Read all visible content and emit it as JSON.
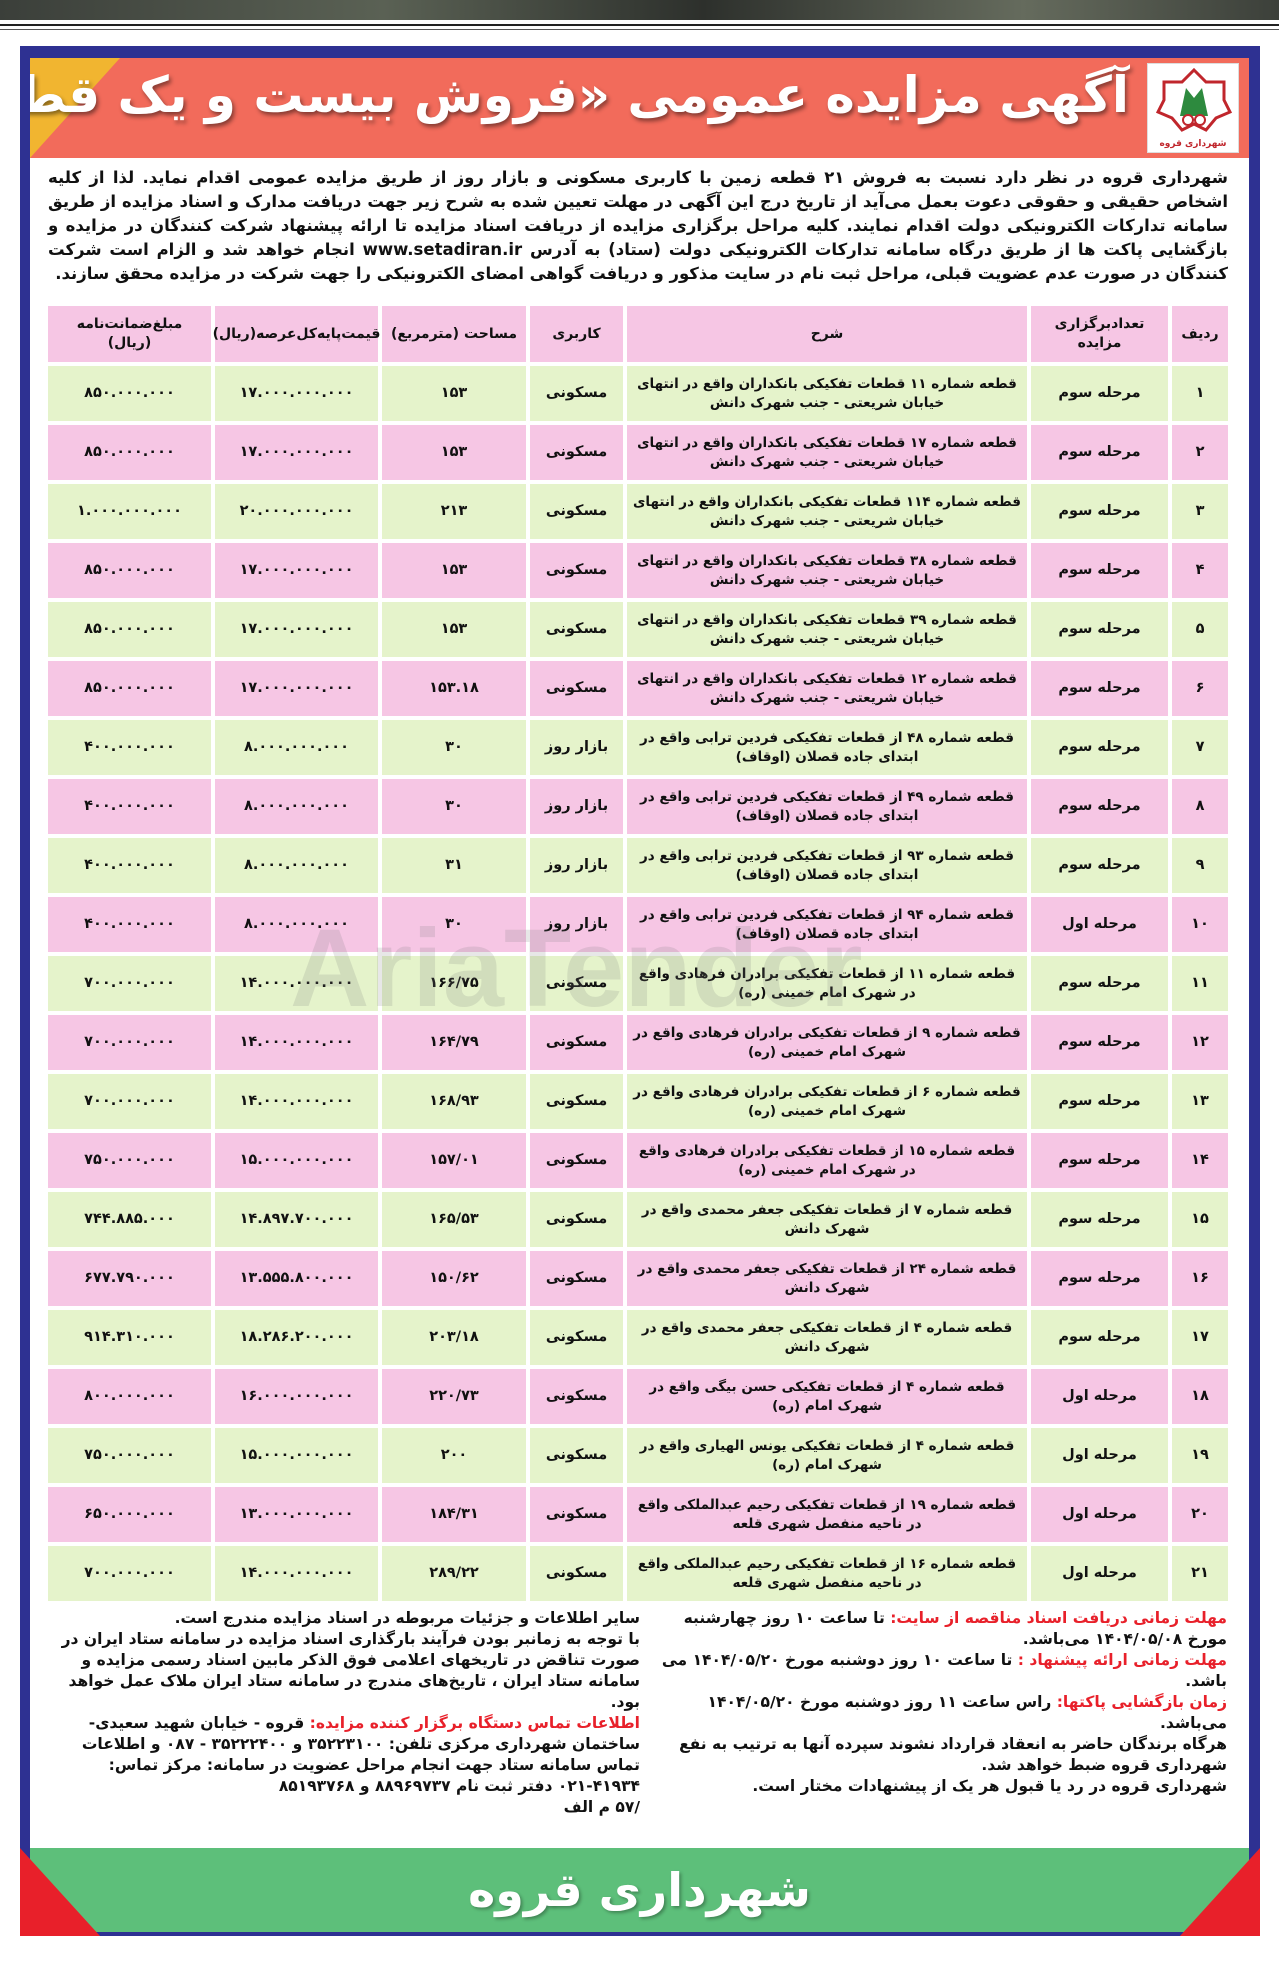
{
  "colors": {
    "frame": "#2e3192",
    "header": "#f26b5b",
    "accent_yellow": "#f1b530",
    "row_green": "#e5f3cb",
    "row_pink": "#f6c6e4",
    "highlight_red": "#e8202a",
    "footer_green": "#5dbf7a"
  },
  "header": {
    "title": "آگهی مزایده عمومی «فروش بیست و یک قطعه زمین»",
    "logo_text": "شهرداری قروه"
  },
  "intro": "شهرداری قروه در نظر دارد نسبت به فروش ۲۱ قطعه زمین با کاربری مسکونی و بازار روز از طریق مزایده عمومی اقدام نماید. لذا از کلیه اشخاص حقیقی و حقوقی دعوت بعمل می‌آید از تاریخ درج این آگهی در مهلت تعیین شده به شرح زیر جهت دریافت مدارک و اسناد مزایده از طریق سامانه تدارکات الکترونیکی دولت اقدام نمایند. کلیه مراحل برگزاری مزایده از دریافت اسناد مزایده تا ارائه پیشنهاد شرکت کنندگان در مزایده و بازگشایی پاکت ها از طریق درگاه سامانه تدارکات الکترونیکی دولت (ستاد) به آدرس www.setadiran.ir انجام خواهد شد و الزام است شرکت کنندگان در صورت عدم عضویت قبلی، مراحل ثبت نام در سایت مذکور و دریافت گواهی امضای الکترونیکی را جهت شرکت در مزایده محقق سازند.",
  "table": {
    "headers": [
      "ردیف",
      "تعدادبرگزاری مزایده",
      "شرح",
      "کاربری",
      "مساحت (مترمربع)",
      "قیمت‌پایه‌کل‌عرصه(ریال)",
      "مبلغ‌ضمانت‌نامه (ریال)"
    ],
    "rows": [
      [
        "۱",
        "مرحله سوم",
        "قطعه شماره ۱۱ قطعات تفکیکی بانکداران واقع در انتهای خیابان شریعتی - جنب شهرک دانش",
        "مسکونی",
        "۱۵۳",
        "۱۷.۰۰۰.۰۰۰.۰۰۰",
        "۸۵۰.۰۰۰.۰۰۰"
      ],
      [
        "۲",
        "مرحله سوم",
        "قطعه شماره ۱۷ قطعات تفکیکی بانکداران واقع در انتهای خیابان شریعتی - جنب شهرک دانش",
        "مسکونی",
        "۱۵۳",
        "۱۷.۰۰۰.۰۰۰.۰۰۰",
        "۸۵۰.۰۰۰.۰۰۰"
      ],
      [
        "۳",
        "مرحله سوم",
        "قطعه شماره ۱۱۴ قطعات تفکیکی بانکداران واقع در انتهای خیابان شریعتی - جنب شهرک دانش",
        "مسکونی",
        "۲۱۳",
        "۲۰.۰۰۰.۰۰۰.۰۰۰",
        "۱.۰۰۰.۰۰۰.۰۰۰"
      ],
      [
        "۴",
        "مرحله سوم",
        "قطعه شماره ۳۸ قطعات تفکیکی بانکداران واقع در انتهای خیابان شریعتی - جنب شهرک دانش",
        "مسکونی",
        "۱۵۳",
        "۱۷.۰۰۰.۰۰۰.۰۰۰",
        "۸۵۰.۰۰۰.۰۰۰"
      ],
      [
        "۵",
        "مرحله سوم",
        "قطعه شماره ۳۹ قطعات تفکیکی بانکداران واقع در انتهای خیابان شریعتی - جنب شهرک دانش",
        "مسکونی",
        "۱۵۳",
        "۱۷.۰۰۰.۰۰۰.۰۰۰",
        "۸۵۰.۰۰۰.۰۰۰"
      ],
      [
        "۶",
        "مرحله سوم",
        "قطعه شماره ۱۲ قطعات تفکیکی بانکداران واقع در انتهای خیابان شریعتی - جنب شهرک دانش",
        "مسکونی",
        "۱۵۳.۱۸",
        "۱۷.۰۰۰.۰۰۰.۰۰۰",
        "۸۵۰.۰۰۰.۰۰۰"
      ],
      [
        "۷",
        "مرحله سوم",
        "قطعه شماره ۴۸ از قطعات تفکیکی فردین ترابی واقع در ابتدای جاده قصلان (اوقاف)",
        "بازار روز",
        "۳۰",
        "۸.۰۰۰.۰۰۰.۰۰۰",
        "۴۰۰.۰۰۰.۰۰۰"
      ],
      [
        "۸",
        "مرحله سوم",
        "قطعه شماره ۴۹ از قطعات تفکیکی فردین ترابی واقع در ابتدای جاده قصلان (اوقاف)",
        "بازار روز",
        "۳۰",
        "۸.۰۰۰.۰۰۰.۰۰۰",
        "۴۰۰.۰۰۰.۰۰۰"
      ],
      [
        "۹",
        "مرحله سوم",
        "قطعه شماره ۹۳ از قطعات تفکیکی فردین ترابی واقع در ابتدای جاده قصلان (اوقاف)",
        "بازار روز",
        "۳۱",
        "۸.۰۰۰.۰۰۰.۰۰۰",
        "۴۰۰.۰۰۰.۰۰۰"
      ],
      [
        "۱۰",
        "مرحله اول",
        "قطعه شماره ۹۴ از قطعات تفکیکی فردین ترابی واقع در ابتدای جاده قصلان (اوقاف)",
        "بازار روز",
        "۳۰",
        "۸.۰۰۰.۰۰۰.۰۰۰",
        "۴۰۰.۰۰۰.۰۰۰"
      ],
      [
        "۱۱",
        "مرحله سوم",
        "قطعه شماره ۱۱ از قطعات تفکیکی برادران فرهادی واقع در شهرک امام خمینی (ره)",
        "مسکونی",
        "۱۶۶/۷۵",
        "۱۴.۰۰۰.۰۰۰.۰۰۰",
        "۷۰۰.۰۰۰.۰۰۰"
      ],
      [
        "۱۲",
        "مرحله سوم",
        "قطعه شماره ۹ از قطعات تفکیکی برادران فرهادی واقع در شهرک امام خمینی (ره)",
        "مسکونی",
        "۱۶۴/۷۹",
        "۱۴.۰۰۰.۰۰۰.۰۰۰",
        "۷۰۰.۰۰۰.۰۰۰"
      ],
      [
        "۱۳",
        "مرحله سوم",
        "قطعه شماره ۶ از قطعات تفکیکی برادران فرهادی واقع در شهرک امام خمینی (ره)",
        "مسکونی",
        "۱۶۸/۹۳",
        "۱۴.۰۰۰.۰۰۰.۰۰۰",
        "۷۰۰.۰۰۰.۰۰۰"
      ],
      [
        "۱۴",
        "مرحله سوم",
        "قطعه شماره ۱۵ از قطعات تفکیکی برادران فرهادی واقع در شهرک امام خمینی (ره)",
        "مسکونی",
        "۱۵۷/۰۱",
        "۱۵.۰۰۰.۰۰۰.۰۰۰",
        "۷۵۰.۰۰۰.۰۰۰"
      ],
      [
        "۱۵",
        "مرحله سوم",
        "قطعه شماره ۷ از قطعات تفکیکی جعفر محمدی واقع در شهرک دانش",
        "مسکونی",
        "۱۶۵/۵۳",
        "۱۴.۸۹۷.۷۰۰.۰۰۰",
        "۷۴۴.۸۸۵.۰۰۰"
      ],
      [
        "۱۶",
        "مرحله سوم",
        "قطعه شماره ۲۴ از قطعات تفکیکی جعفر محمدی واقع در شهرک دانش",
        "مسکونی",
        "۱۵۰/۶۲",
        "۱۳.۵۵۵.۸۰۰.۰۰۰",
        "۶۷۷.۷۹۰.۰۰۰"
      ],
      [
        "۱۷",
        "مرحله سوم",
        "قطعه شماره ۴ از قطعات تفکیکی جعفر محمدی واقع در شهرک دانش",
        "مسکونی",
        "۲۰۳/۱۸",
        "۱۸.۲۸۶.۲۰۰.۰۰۰",
        "۹۱۴.۳۱۰.۰۰۰"
      ],
      [
        "۱۸",
        "مرحله اول",
        "قطعه شماره ۴ از قطعات تفکیکی حسن بیگی واقع در شهرک امام (ره)",
        "مسکونی",
        "۲۲۰/۷۳",
        "۱۶.۰۰۰.۰۰۰.۰۰۰",
        "۸۰۰.۰۰۰.۰۰۰"
      ],
      [
        "۱۹",
        "مرحله اول",
        "قطعه شماره ۴ از قطعات تفکیکی یونس الهیاری واقع در شهرک امام (ره)",
        "مسکونی",
        "۲۰۰",
        "۱۵.۰۰۰.۰۰۰.۰۰۰",
        "۷۵۰.۰۰۰.۰۰۰"
      ],
      [
        "۲۰",
        "مرحله اول",
        "قطعه شماره ۱۹ از قطعات تفکیکی رحیم عبدالملکی واقع در ناحیه منفصل شهری قلعه",
        "مسکونی",
        "۱۸۴/۳۱",
        "۱۳.۰۰۰.۰۰۰.۰۰۰",
        "۶۵۰.۰۰۰.۰۰۰"
      ],
      [
        "۲۱",
        "مرحله اول",
        "قطعه شماره ۱۶ از قطعات تفکیکی رحیم عبدالملکی واقع در ناحیه منفصل شهری قلعه",
        "مسکونی",
        "۲۸۹/۲۲",
        "۱۴.۰۰۰.۰۰۰.۰۰۰",
        "۷۰۰.۰۰۰.۰۰۰"
      ]
    ]
  },
  "watermark": "AriaTender",
  "footer_right": {
    "doc_deadline_label": "مهلت زمانی دریافت اسناد مناقصه از سایت:",
    "doc_deadline_text": "تا ساعت ۱۰ روز چهارشنبه مورخ ۱۴۰۴/۰۵/۰۸ می‌باشد.",
    "offer_deadline_label": "مهلت زمانی ارائه پیشنهاد :",
    "offer_deadline_text": "تا ساعت ۱۰ روز دوشنبه مورخ ۱۴۰۴/۰۵/۲۰ می باشد.",
    "opening_label": "زمان بازگشایی پاکتها:",
    "opening_text": "راس ساعت ۱۱ روز دوشنبه مورخ ۱۴۰۴/۰۵/۲۰ می‌باشد.",
    "note1": "هرگاه برندگان حاضر به انعقاد قرارداد نشوند سپرده آنها به ترتیب به نفع شهرداری قروه ضبط خواهد شد.",
    "note2": "شهرداری قروه در رد یا قبول هر یک از پیشنهادات مختار است."
  },
  "footer_left": {
    "note1": "سایر اطلاعات و جزئیات مربوطه در اسناد مزایده مندرج است.",
    "note2": "با توجه به زمانبر بودن فرآیند بارگذاری اسناد مزایده در سامانه ستاد ایران در صورت تناقض در تاریخهای اعلامی فوق الذکر مابین اسناد رسمی مزایده و سامانه ستاد ایران ، تاریخ‌های مندرج در سامانه ستاد ایران ملاک عمل خواهد بود.",
    "contact_label": "اطلاعات تماس دستگاه برگزار کننده مزایده:",
    "contact_text": "قروه - خیابان شهید سعیدی- ساختمان شهرداری مرکزی تلفن: ۳۵۲۲۳۱۰۰ و ۳۵۲۲۲۴۰۰ - ۰۸۷ و اطلاعات تماس سامانه ستاد جهت انجام مراحل عضویت در سامانه: مرکز تماس: ۴۱۹۳۴-۰۲۱ دفتر ثبت نام ۸۸۹۶۹۷۳۷ و ۸۵۱۹۳۷۶۸",
    "code": "/۵۷ م الف"
  },
  "banner": "شهرداری قروه"
}
